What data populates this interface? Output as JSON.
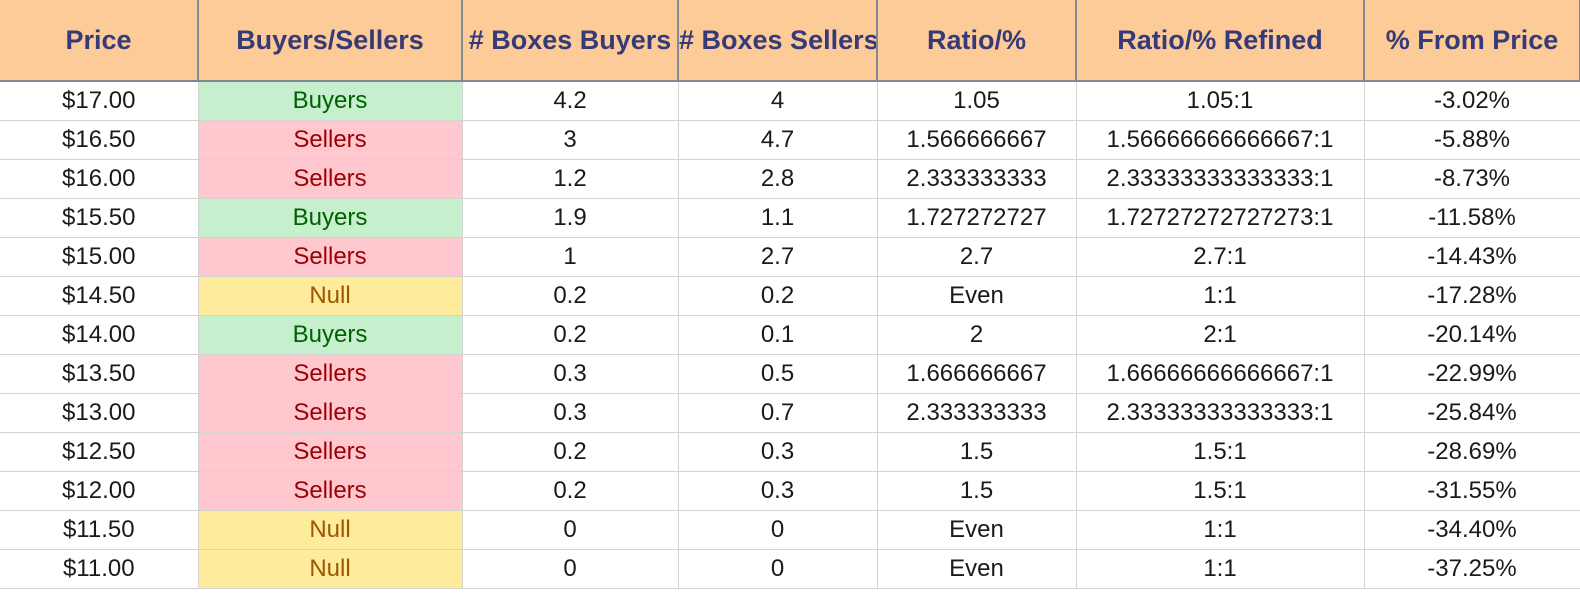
{
  "columns": [
    "Price",
    "Buyers/Sellers",
    "# Boxes Buyers",
    "# Boxes Sellers",
    "Ratio/%",
    "Ratio/% Refined",
    "% From Price"
  ],
  "colors": {
    "header_bg": "#fdcb97",
    "header_text": "#353a78",
    "buyers_bg": "#c6efce",
    "buyers_text": "#006100",
    "sellers_bg": "#ffc7ce",
    "sellers_text": "#9c0006",
    "null_bg": "#ffeb9c",
    "null_text": "#9c5700"
  },
  "rows": [
    {
      "price": "$17.00",
      "side": "Buyers",
      "boxes_buyers": "4.2",
      "boxes_sellers": "4",
      "ratio": "1.05",
      "ratio_refined": "1.05:1",
      "from_price": "-3.02%"
    },
    {
      "price": "$16.50",
      "side": "Sellers",
      "boxes_buyers": "3",
      "boxes_sellers": "4.7",
      "ratio": "1.566666667",
      "ratio_refined": "1.56666666666667:1",
      "from_price": "-5.88%"
    },
    {
      "price": "$16.00",
      "side": "Sellers",
      "boxes_buyers": "1.2",
      "boxes_sellers": "2.8",
      "ratio": "2.333333333",
      "ratio_refined": "2.33333333333333:1",
      "from_price": "-8.73%"
    },
    {
      "price": "$15.50",
      "side": "Buyers",
      "boxes_buyers": "1.9",
      "boxes_sellers": "1.1",
      "ratio": "1.727272727",
      "ratio_refined": "1.72727272727273:1",
      "from_price": "-11.58%"
    },
    {
      "price": "$15.00",
      "side": "Sellers",
      "boxes_buyers": "1",
      "boxes_sellers": "2.7",
      "ratio": "2.7",
      "ratio_refined": "2.7:1",
      "from_price": "-14.43%"
    },
    {
      "price": "$14.50",
      "side": "Null",
      "boxes_buyers": "0.2",
      "boxes_sellers": "0.2",
      "ratio": "Even",
      "ratio_refined": "1:1",
      "from_price": "-17.28%"
    },
    {
      "price": "$14.00",
      "side": "Buyers",
      "boxes_buyers": "0.2",
      "boxes_sellers": "0.1",
      "ratio": "2",
      "ratio_refined": "2:1",
      "from_price": "-20.14%"
    },
    {
      "price": "$13.50",
      "side": "Sellers",
      "boxes_buyers": "0.3",
      "boxes_sellers": "0.5",
      "ratio": "1.666666667",
      "ratio_refined": "1.66666666666667:1",
      "from_price": "-22.99%"
    },
    {
      "price": "$13.00",
      "side": "Sellers",
      "boxes_buyers": "0.3",
      "boxes_sellers": "0.7",
      "ratio": "2.333333333",
      "ratio_refined": "2.33333333333333:1",
      "from_price": "-25.84%"
    },
    {
      "price": "$12.50",
      "side": "Sellers",
      "boxes_buyers": "0.2",
      "boxes_sellers": "0.3",
      "ratio": "1.5",
      "ratio_refined": "1.5:1",
      "from_price": "-28.69%"
    },
    {
      "price": "$12.00",
      "side": "Sellers",
      "boxes_buyers": "0.2",
      "boxes_sellers": "0.3",
      "ratio": "1.5",
      "ratio_refined": "1.5:1",
      "from_price": "-31.55%"
    },
    {
      "price": "$11.50",
      "side": "Null",
      "boxes_buyers": "0",
      "boxes_sellers": "0",
      "ratio": "Even",
      "ratio_refined": "1:1",
      "from_price": "-34.40%"
    },
    {
      "price": "$11.00",
      "side": "Null",
      "boxes_buyers": "0",
      "boxes_sellers": "0",
      "ratio": "Even",
      "ratio_refined": "1:1",
      "from_price": "-37.25%"
    }
  ]
}
